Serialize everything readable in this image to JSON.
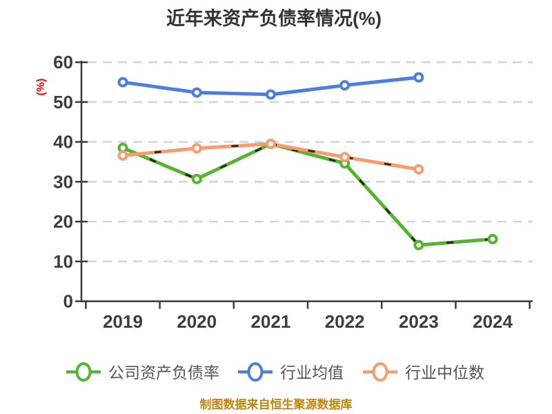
{
  "title": "近年来资产负债率情况(%)",
  "footer_note": "制图数据来自恒生聚源数据库",
  "chart_data": {
    "type": "line",
    "title": "近年来资产负债率情况(%)",
    "x": [
      "2019",
      "2020",
      "2021",
      "2022",
      "2023",
      "2024"
    ],
    "series": [
      {
        "key": "company",
        "name": "公司资产负债率",
        "color": "#54b42f",
        "values": [
          38.5,
          30.7,
          39.5,
          34.6,
          14.1,
          15.6
        ]
      },
      {
        "key": "industry-mean",
        "name": "行业均值",
        "color": "#4d7ce5",
        "values": [
          55.0,
          52.4,
          51.9,
          54.2,
          56.2,
          null
        ]
      },
      {
        "key": "industry-median",
        "name": "行业中位数",
        "color": "#f99b6e",
        "values": [
          36.6,
          38.4,
          39.5,
          36.2,
          33.1,
          null
        ]
      }
    ],
    "ylabel": "(%)",
    "xlabel": "",
    "ylim": [
      0,
      60
    ],
    "yticks": [
      0,
      10,
      20,
      30,
      40,
      50,
      60
    ],
    "grid": "horizontal-dashed",
    "legend_position": "bottom",
    "marker": "circle-white-fill"
  },
  "style": {
    "background": "#ffffff",
    "title_color": "#333333",
    "tick_label_color": "#3d3d3d",
    "axis_color": "#3a3a3a",
    "gridline_color": "#d4d4d4",
    "y_label_color": "#ff0000",
    "legend_text_color": "#555555",
    "footer_color": "#c0860b",
    "dash_overlay_color": "#1a1a1a",
    "dash_overlay_series": [
      "company",
      "industry-median"
    ]
  }
}
